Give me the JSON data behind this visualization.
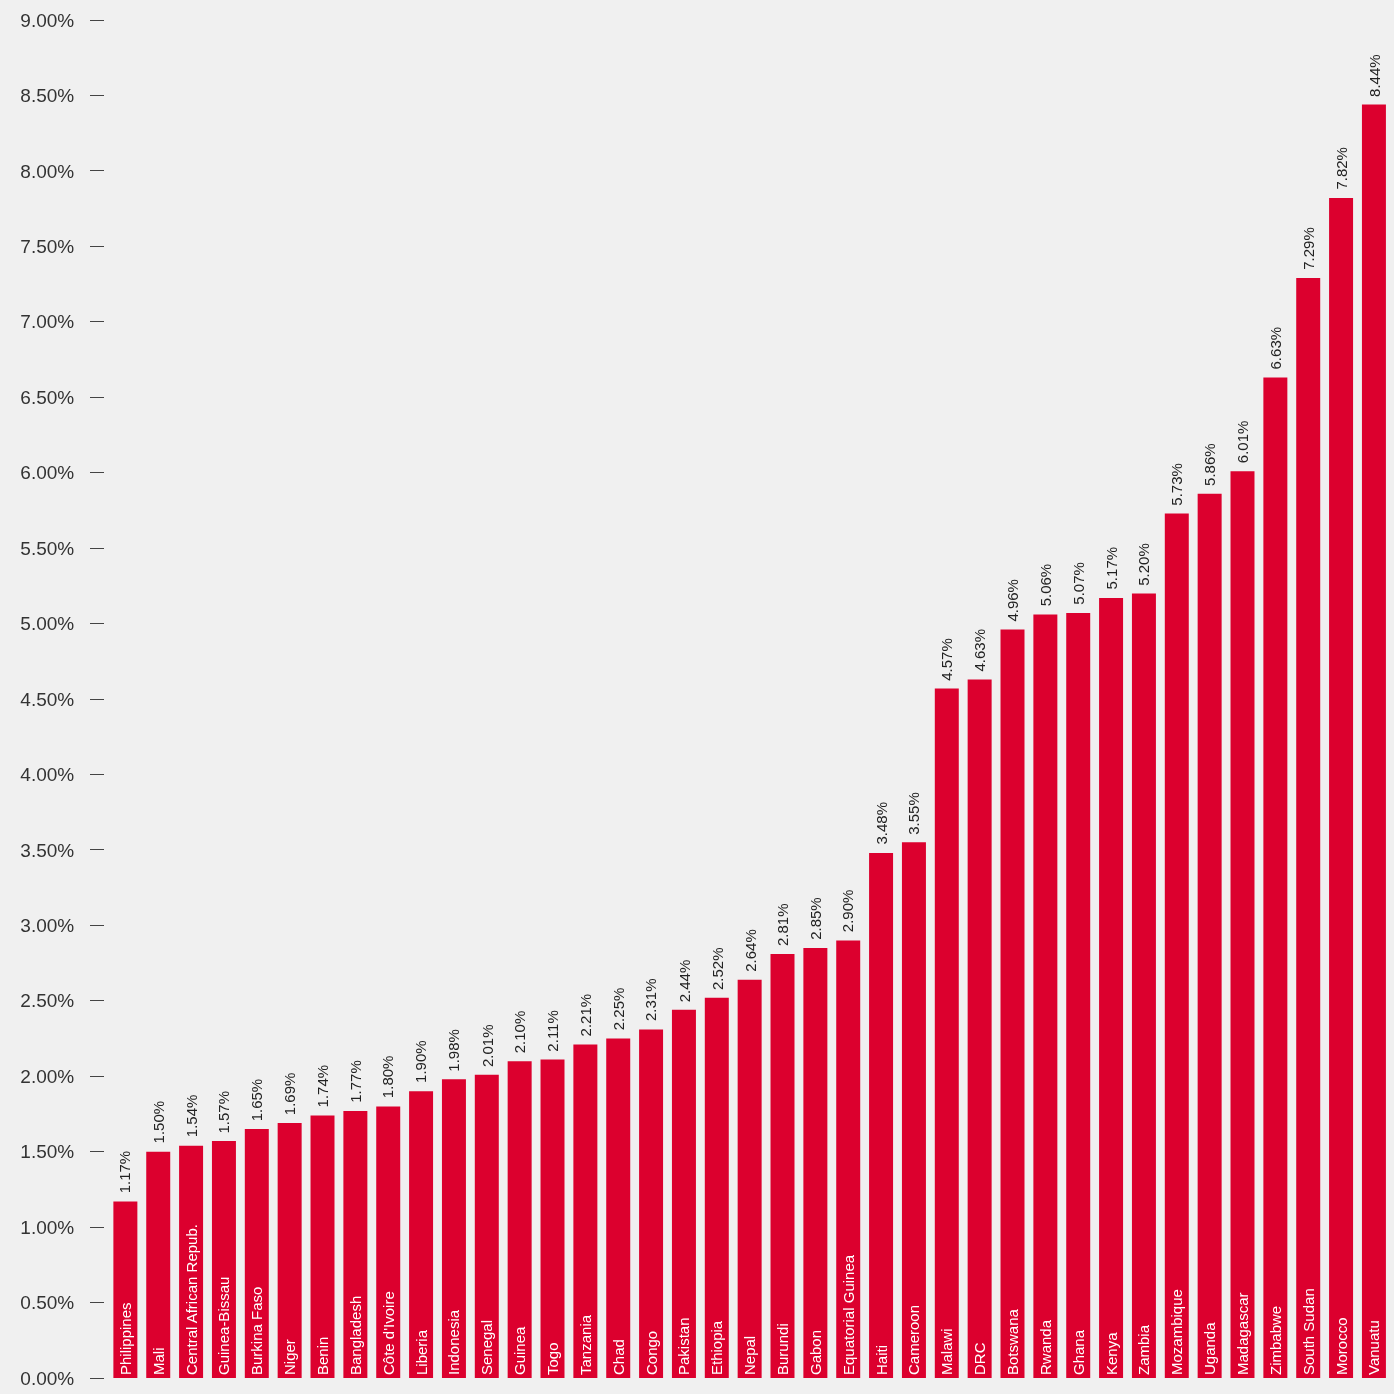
{
  "chart_data": {
    "type": "bar",
    "categories": [
      "Philippines",
      "Mali",
      "Central African Repub.",
      "Guinea-Bissau",
      "Burkina Faso",
      "Niger",
      "Benin",
      "Bangladesh",
      "Côte d'Ivoire",
      "Liberia",
      "Indonesia",
      "Senegal",
      "Guinea",
      "Togo",
      "Tanzania",
      "Chad",
      "Congo",
      "Pakistan",
      "Ethiopia",
      "Nepal",
      "Burundi",
      "Gabon",
      "Equatorial Guinea",
      "Haiti",
      "Cameroon",
      "Malawi",
      "DRC",
      "Botswana",
      "Rwanda",
      "Ghana",
      "Kenya",
      "Zambia",
      "Mozambique",
      "Uganda",
      "Madagascar",
      "Zimbabwe",
      "South Sudan",
      "Morocco",
      "Vanuatu"
    ],
    "values": [
      1.17,
      1.5,
      1.54,
      1.57,
      1.65,
      1.69,
      1.74,
      1.77,
      1.8,
      1.9,
      1.98,
      2.01,
      2.1,
      2.11,
      2.21,
      2.25,
      2.31,
      2.44,
      2.52,
      2.64,
      2.81,
      2.85,
      2.9,
      3.48,
      3.55,
      4.57,
      4.63,
      4.96,
      5.06,
      5.07,
      5.17,
      5.2,
      5.73,
      5.86,
      6.01,
      6.63,
      7.29,
      7.82,
      8.44
    ],
    "value_labels": [
      "1.17%",
      "1.50%",
      "1.54%",
      "1.57%",
      "1.65%",
      "1.69%",
      "1.74%",
      "1.77%",
      "1.80%",
      "1.90%",
      "1.98%",
      "2.01%",
      "2.10%",
      "2.11%",
      "2.21%",
      "2.25%",
      "2.31%",
      "2.44%",
      "2.52%",
      "2.64%",
      "2.81%",
      "2.85%",
      "2.90%",
      "3.48%",
      "3.55%",
      "4.57%",
      "4.63%",
      "4.96%",
      "5.06%",
      "5.07%",
      "5.17%",
      "5.20%",
      "5.73%",
      "5.86%",
      "6.01%",
      "6.63%",
      "7.29%",
      "7.82%",
      "8.44%"
    ],
    "color": "#dc002e",
    "ylim": [
      0,
      9
    ],
    "yticks": [
      {
        "value": 0,
        "label": "0.00%"
      },
      {
        "value": 0.5,
        "label": "0.50%"
      },
      {
        "value": 1,
        "label": "1.00%"
      },
      {
        "value": 1.5,
        "label": "1.50%"
      },
      {
        "value": 2,
        "label": "2.00%"
      },
      {
        "value": 2.5,
        "label": "2.50%"
      },
      {
        "value": 3,
        "label": "3.00%"
      },
      {
        "value": 3.5,
        "label": "3.50%"
      },
      {
        "value": 4,
        "label": "4.00%"
      },
      {
        "value": 4.5,
        "label": "4.50%"
      },
      {
        "value": 5,
        "label": "5.00%"
      },
      {
        "value": 5.5,
        "label": "5.50%"
      },
      {
        "value": 6,
        "label": "6.00%"
      },
      {
        "value": 6.5,
        "label": "6.50%"
      },
      {
        "value": 7,
        "label": "7.00%"
      },
      {
        "value": 7.5,
        "label": "7.50%"
      },
      {
        "value": 8,
        "label": "8.00%"
      },
      {
        "value": 8.5,
        "label": "8.50%"
      },
      {
        "value": 9,
        "label": "9.00%"
      }
    ],
    "grid": false
  }
}
